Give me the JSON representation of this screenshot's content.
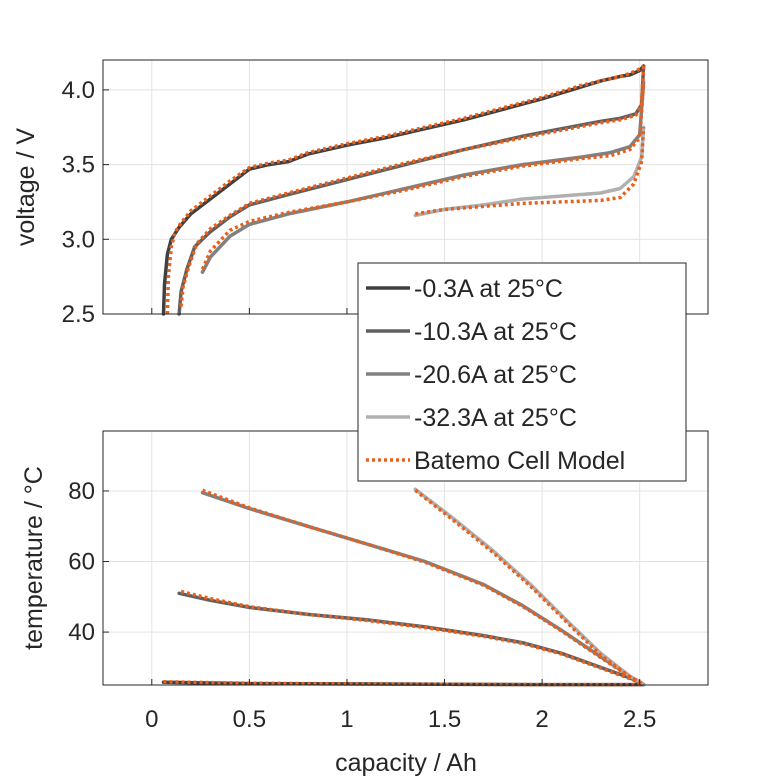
{
  "chart_data": [
    {
      "type": "line",
      "title": "",
      "xlabel": "",
      "ylabel": "voltage / V",
      "xlim": [
        -0.25,
        2.85
      ],
      "ylim": [
        2.5,
        4.2
      ],
      "xticks": [
        0,
        0.5,
        1,
        1.5,
        2,
        2.5
      ],
      "yticks": [
        2.5,
        3.0,
        3.5,
        4.0
      ],
      "ytick_labels": [
        "2.5",
        "3.0",
        "3.5",
        "4.0"
      ],
      "grid": true,
      "series": [
        {
          "name": "-0.3A at 25°C",
          "color": "#404040",
          "x": [
            0.06,
            0.065,
            0.08,
            0.1,
            0.14,
            0.2,
            0.3,
            0.4,
            0.5,
            0.6,
            0.7,
            0.8,
            1.0,
            1.2,
            1.4,
            1.6,
            1.8,
            2.0,
            2.2,
            2.3,
            2.4,
            2.45,
            2.5,
            2.52
          ],
          "y": [
            2.5,
            2.7,
            2.9,
            3.0,
            3.08,
            3.17,
            3.27,
            3.37,
            3.47,
            3.5,
            3.52,
            3.57,
            3.63,
            3.68,
            3.74,
            3.8,
            3.87,
            3.94,
            4.02,
            4.06,
            4.09,
            4.1,
            4.13,
            4.16
          ]
        },
        {
          "name": "-10.3A at 25°C",
          "color": "#606060",
          "x": [
            0.14,
            0.15,
            0.18,
            0.22,
            0.3,
            0.4,
            0.5,
            0.7,
            1.0,
            1.3,
            1.6,
            1.9,
            2.1,
            2.3,
            2.4,
            2.48,
            2.51,
            2.52
          ],
          "y": [
            2.5,
            2.65,
            2.8,
            2.95,
            3.05,
            3.15,
            3.23,
            3.3,
            3.4,
            3.5,
            3.6,
            3.69,
            3.74,
            3.79,
            3.81,
            3.84,
            3.9,
            4.16
          ]
        },
        {
          "name": "-20.6A at 25°C",
          "color": "#808080",
          "x": [
            0.26,
            0.3,
            0.4,
            0.5,
            0.7,
            1.0,
            1.3,
            1.6,
            1.9,
            2.2,
            2.35,
            2.45,
            2.5,
            2.52
          ],
          "y": [
            2.78,
            2.88,
            3.02,
            3.1,
            3.17,
            3.25,
            3.34,
            3.43,
            3.5,
            3.55,
            3.58,
            3.62,
            3.7,
            4.05
          ]
        },
        {
          "name": "-32.3A at 25°C",
          "color": "#b0b0b0",
          "x": [
            1.35,
            1.5,
            1.7,
            1.9,
            2.1,
            2.3,
            2.4,
            2.47,
            2.51,
            2.52
          ],
          "y": [
            3.16,
            3.2,
            3.23,
            3.27,
            3.29,
            3.31,
            3.34,
            3.42,
            3.55,
            3.75
          ]
        },
        {
          "name": "Batemo Cell Model",
          "color": "#e8601c",
          "dotted": true,
          "segments": [
            {
              "x": [
                0.08,
                0.085,
                0.1,
                0.12,
                0.15,
                0.2,
                0.3,
                0.4,
                0.5,
                0.6,
                0.7,
                0.8,
                1.0,
                1.2,
                1.4,
                1.6,
                1.8,
                2.0,
                2.2,
                2.3,
                2.4,
                2.45,
                2.5,
                2.52
              ],
              "y": [
                2.5,
                2.75,
                2.95,
                3.05,
                3.11,
                3.19,
                3.29,
                3.39,
                3.48,
                3.51,
                3.53,
                3.58,
                3.64,
                3.69,
                3.75,
                3.81,
                3.88,
                3.95,
                4.03,
                4.06,
                4.09,
                4.11,
                4.14,
                4.16
              ]
            },
            {
              "x": [
                0.15,
                0.16,
                0.19,
                0.23,
                0.3,
                0.4,
                0.5,
                0.7,
                1.0,
                1.3,
                1.6,
                1.9,
                2.1,
                2.3,
                2.4,
                2.48,
                2.51,
                2.52
              ],
              "y": [
                2.55,
                2.68,
                2.82,
                2.97,
                3.07,
                3.16,
                3.24,
                3.31,
                3.41,
                3.51,
                3.6,
                3.68,
                3.73,
                3.78,
                3.8,
                3.83,
                3.9,
                4.16
              ]
            },
            {
              "x": [
                0.26,
                0.3,
                0.4,
                0.5,
                0.7,
                1.0,
                1.3,
                1.6,
                1.9,
                2.2,
                2.35,
                2.45,
                2.5,
                2.52
              ],
              "y": [
                2.8,
                2.92,
                3.06,
                3.12,
                3.18,
                3.25,
                3.33,
                3.42,
                3.49,
                3.54,
                3.56,
                3.6,
                3.68,
                4.05
              ]
            },
            {
              "x": [
                1.35,
                1.5,
                1.7,
                1.9,
                2.1,
                2.3,
                2.4,
                2.47,
                2.51,
                2.52
              ],
              "y": [
                3.17,
                3.2,
                3.22,
                3.24,
                3.25,
                3.26,
                3.28,
                3.37,
                3.52,
                3.75
              ]
            }
          ]
        }
      ]
    },
    {
      "type": "line",
      "title": "",
      "xlabel": "capacity / Ah",
      "ylabel": "temperature / °C",
      "xlim": [
        -0.25,
        2.85
      ],
      "ylim": [
        25,
        97
      ],
      "xticks": [
        0,
        0.5,
        1,
        1.5,
        2,
        2.5
      ],
      "xtick_labels": [
        "0",
        "0.5",
        "1",
        "1.5",
        "2",
        "2.5"
      ],
      "yticks": [
        40,
        60,
        80
      ],
      "ytick_labels": [
        "40",
        "60",
        "80"
      ],
      "grid": true,
      "series": [
        {
          "name": "-0.3A at 25°C",
          "color": "#404040",
          "x": [
            0.06,
            0.5,
            1.0,
            1.5,
            2.0,
            2.5,
            2.52
          ],
          "y": [
            25.8,
            25.4,
            25.3,
            25.2,
            25.1,
            25.1,
            25.1
          ]
        },
        {
          "name": "-10.3A at 25°C",
          "color": "#606060",
          "x": [
            0.14,
            0.3,
            0.5,
            0.8,
            1.1,
            1.4,
            1.7,
            1.9,
            2.1,
            2.3,
            2.45,
            2.52
          ],
          "y": [
            51,
            49,
            47,
            45,
            43.5,
            41.5,
            39,
            37,
            34,
            30,
            27,
            25.2
          ]
        },
        {
          "name": "-20.6A at 25°C",
          "color": "#808080",
          "x": [
            0.26,
            0.5,
            0.8,
            1.1,
            1.4,
            1.7,
            1.9,
            2.1,
            2.3,
            2.45,
            2.52
          ],
          "y": [
            79.5,
            75,
            70,
            65,
            60,
            53.5,
            47.5,
            40.5,
            33,
            27.5,
            25.2
          ]
        },
        {
          "name": "-32.3A at 25°C",
          "color": "#b0b0b0",
          "x": [
            1.35,
            1.55,
            1.75,
            1.95,
            2.15,
            2.3,
            2.45,
            2.52
          ],
          "y": [
            80.5,
            72,
            63,
            53,
            42,
            34,
            27.5,
            25.2
          ]
        },
        {
          "name": "Batemo Cell Model",
          "color": "#e8601c",
          "dotted": true,
          "segments": [
            {
              "x": [
                0.06,
                0.5,
                1.0,
                1.5,
                2.0,
                2.5,
                2.52
              ],
              "y": [
                25.9,
                25.5,
                25.3,
                25.2,
                25.1,
                25.1,
                25.1
              ]
            },
            {
              "x": [
                0.15,
                0.3,
                0.5,
                0.8,
                1.1,
                1.4,
                1.7,
                1.9,
                2.1,
                2.3,
                2.45,
                2.52
              ],
              "y": [
                51.5,
                49.5,
                47.2,
                45,
                43.3,
                41.3,
                38.8,
                36.8,
                33.8,
                29.8,
                26.8,
                25.2
              ]
            },
            {
              "x": [
                0.26,
                0.5,
                0.8,
                1.1,
                1.4,
                1.7,
                1.9,
                2.1,
                2.3,
                2.45,
                2.52
              ],
              "y": [
                80.2,
                75.2,
                70,
                65,
                59.8,
                53.3,
                47.3,
                40.3,
                32.8,
                27.3,
                25.2
              ]
            },
            {
              "x": [
                1.35,
                1.55,
                1.75,
                1.95,
                2.15,
                2.3,
                2.45,
                2.52
              ],
              "y": [
                80.2,
                71.5,
                62.5,
                52.5,
                41.5,
                33.5,
                27.3,
                25.2
              ]
            }
          ]
        }
      ]
    }
  ],
  "legend": {
    "position": "between-panels-right",
    "entries": [
      {
        "label": "-0.3A at 25°C",
        "color": "#404040"
      },
      {
        "label": "-10.3A at 25°C",
        "color": "#606060"
      },
      {
        "label": "-20.6A at 25°C",
        "color": "#808080"
      },
      {
        "label": "-32.3A at 25°C",
        "color": "#b0b0b0"
      },
      {
        "label": "Batemo Cell Model",
        "color": "#e8601c",
        "dotted": true
      }
    ]
  }
}
